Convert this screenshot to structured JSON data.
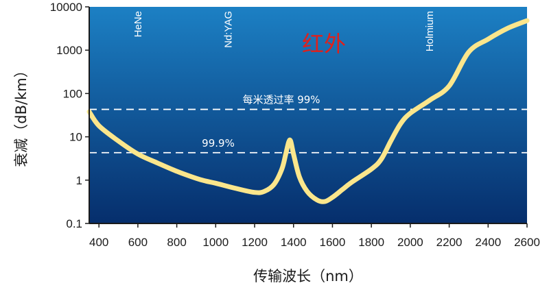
{
  "chart_data": {
    "type": "line",
    "title": "",
    "xlabel": "传输波长（nm）",
    "ylabel": "衰减（dB/km）",
    "xlim": [
      350,
      2600
    ],
    "ylim": [
      0.1,
      10000
    ],
    "yscale": "log",
    "x_ticks": [
      400,
      600,
      800,
      1000,
      1200,
      1400,
      1600,
      1800,
      2000,
      2200,
      2400,
      2600
    ],
    "y_ticks": [
      {
        "value": 0.1,
        "label": "0.1"
      },
      {
        "value": 1,
        "label": "1"
      },
      {
        "value": 10,
        "label": "10"
      },
      {
        "value": 100,
        "label": "100"
      },
      {
        "value": 1000,
        "label": "1000"
      },
      {
        "value": 10000,
        "label": "10000"
      }
    ],
    "grid": false,
    "region_label": "红外",
    "colors": {
      "background_top": "#1c80c4",
      "background_bottom": "#062e6c",
      "curve": "#fbe68c",
      "reference_lines": "#ffffff",
      "region_label": "#e0201b"
    },
    "series": [
      {
        "x": [
          350,
          400,
          500,
          600,
          700,
          800,
          900,
          950,
          1000,
          1100,
          1200,
          1250,
          1300,
          1340,
          1360,
          1375,
          1385,
          1400,
          1430,
          1470,
          1520,
          1560,
          1600,
          1650,
          1700,
          1800,
          1850,
          1900,
          1950,
          2000,
          2100,
          2200,
          2300,
          2400,
          2500,
          2600
        ],
        "y": [
          38,
          18,
          8,
          4,
          2.5,
          1.6,
          1.1,
          0.95,
          0.85,
          0.65,
          0.52,
          0.55,
          0.8,
          1.8,
          4,
          7.5,
          8,
          4,
          1.2,
          0.55,
          0.35,
          0.32,
          0.4,
          0.6,
          0.9,
          1.8,
          3,
          8,
          20,
          35,
          70,
          150,
          900,
          1800,
          3200,
          4800
        ]
      }
    ],
    "reference_lines": [
      {
        "y": 43,
        "label": "每米透过率 99%"
      },
      {
        "y": 4.3,
        "label": "99.9%"
      }
    ],
    "annotations": [
      {
        "x": 600,
        "text": "HeNe"
      },
      {
        "x": 1064,
        "text": "Nd:YAG"
      },
      {
        "x": 2100,
        "text": "Holmium"
      }
    ]
  }
}
